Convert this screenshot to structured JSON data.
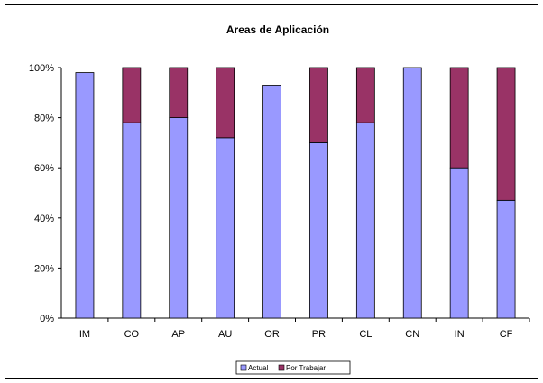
{
  "chart_data": {
    "type": "bar",
    "stacked": true,
    "title": "Areas de Aplicación",
    "categories": [
      "IM",
      "CO",
      "AP",
      "AU",
      "OR",
      "PR",
      "CL",
      "CN",
      "IN",
      "CF"
    ],
    "series": [
      {
        "name": "Actual",
        "color": "#9999ff",
        "values": [
          98,
          78,
          80,
          72,
          93,
          70,
          78,
          100,
          60,
          47
        ]
      },
      {
        "name": "Por Trabajar",
        "color": "#993366",
        "values": [
          0,
          22,
          20,
          28,
          0,
          30,
          22,
          0,
          40,
          53
        ]
      }
    ],
    "xlabel": "",
    "ylabel": "",
    "ylim": [
      0,
      100
    ],
    "yticks": [
      "0%",
      "20%",
      "40%",
      "60%",
      "80%",
      "100%"
    ],
    "grid": false,
    "legend": "bottom"
  }
}
